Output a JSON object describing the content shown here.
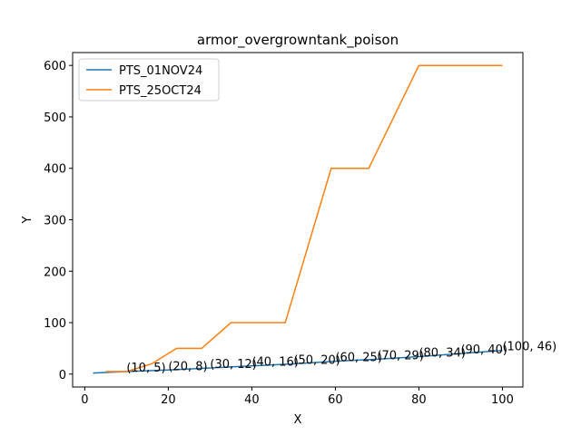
{
  "chart_data": {
    "type": "line",
    "title": "armor_overgrowntank_poison",
    "xlabel": "X",
    "ylabel": "Y",
    "xlim": [
      -2.9,
      104.9
    ],
    "ylim": [
      -25,
      625
    ],
    "xticks": [
      0,
      20,
      40,
      60,
      80,
      100
    ],
    "yticks": [
      0,
      100,
      200,
      300,
      400,
      500,
      600
    ],
    "legend_position": "top-left",
    "grid": false,
    "series": [
      {
        "name": "PTS_01NOV24",
        "color": "#1f77b4",
        "x": [
          2,
          10,
          20,
          30,
          40,
          50,
          60,
          70,
          80,
          90,
          100
        ],
        "y": [
          2,
          5,
          8,
          12,
          16,
          20,
          25,
          29,
          34,
          40,
          46
        ]
      },
      {
        "name": "PTS_25OCT24",
        "color": "#ff7f0e",
        "x": [
          5,
          10,
          16,
          22,
          28,
          35,
          48,
          59,
          68,
          80,
          100
        ],
        "y": [
          5,
          5,
          20,
          50,
          50,
          100,
          100,
          400,
          400,
          600,
          600
        ]
      }
    ],
    "annotations": [
      {
        "x": 10,
        "y": 5,
        "text": "(10, 5)"
      },
      {
        "x": 20,
        "y": 8,
        "text": "(20, 8)"
      },
      {
        "x": 30,
        "y": 12,
        "text": "(30, 12)"
      },
      {
        "x": 40,
        "y": 16,
        "text": "(40, 16)"
      },
      {
        "x": 50,
        "y": 20,
        "text": "(50, 20)"
      },
      {
        "x": 60,
        "y": 25,
        "text": "(60, 25)"
      },
      {
        "x": 70,
        "y": 29,
        "text": "(70, 29)"
      },
      {
        "x": 80,
        "y": 34,
        "text": "(80, 34)"
      },
      {
        "x": 90,
        "y": 40,
        "text": "(90, 40)"
      },
      {
        "x": 100,
        "y": 46,
        "text": "(100, 46)"
      }
    ]
  }
}
